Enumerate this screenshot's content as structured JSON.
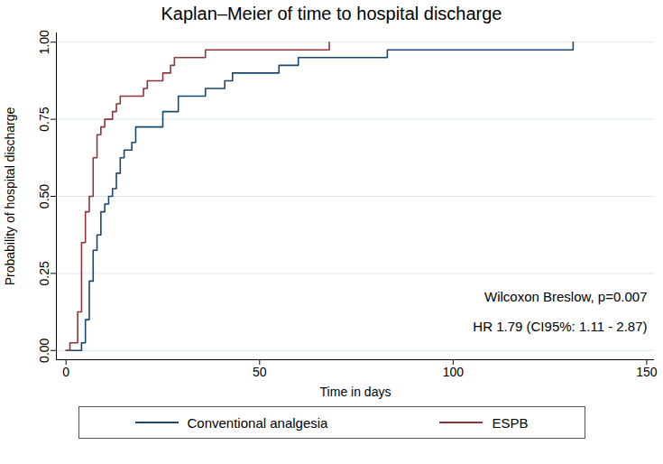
{
  "chart_data": {
    "type": "step",
    "title": "Kaplan–Meier of time to hospital discharge",
    "x_label": "Time in days",
    "y_label": "Probability of hospital discharge",
    "annotations": [
      "Wilcoxon Breslow, p=0.007",
      "HR 1.79 (CI95%: 1.11 - 2.87)"
    ],
    "xlim": [
      -2.5,
      152
    ],
    "xticks": [
      0,
      50,
      100,
      150
    ],
    "ylim": [
      -0.03,
      1.03
    ],
    "yticks": [
      {
        "value": 0,
        "label": "0.00"
      },
      {
        "value": 0.25,
        "label": "0.25"
      },
      {
        "value": 0.5,
        "label": "0.50"
      },
      {
        "value": 0.75,
        "label": "0.75"
      },
      {
        "value": 1,
        "label": "1.00"
      }
    ],
    "grid": "y",
    "legend": "bottom",
    "series": [
      {
        "name": "Conventional analgesia",
        "color": "#1a476f",
        "x": [
          0,
          4,
          5,
          6,
          7,
          8,
          9,
          10,
          11,
          12,
          13,
          14,
          15,
          17,
          18,
          25,
          29,
          36,
          41,
          43,
          55,
          60,
          83,
          131
        ],
        "values": [
          0,
          0.025,
          0.1,
          0.225,
          0.325,
          0.375,
          0.45,
          0.475,
          0.5,
          0.525,
          0.575,
          0.625,
          0.65,
          0.675,
          0.725,
          0.775,
          0.825,
          0.85,
          0.875,
          0.9,
          0.925,
          0.95,
          0.975,
          1
        ]
      },
      {
        "name": "ESPB",
        "color": "#90353b",
        "x": [
          0,
          1,
          3,
          4,
          5,
          6,
          7,
          8,
          9,
          10,
          12,
          13,
          14,
          20,
          21,
          25,
          27,
          28,
          36,
          68
        ],
        "values": [
          0,
          0.025,
          0.125,
          0.35,
          0.45,
          0.5,
          0.625,
          0.7,
          0.725,
          0.75,
          0.775,
          0.8,
          0.825,
          0.85,
          0.875,
          0.9,
          0.925,
          0.95,
          0.975,
          1
        ]
      }
    ]
  }
}
